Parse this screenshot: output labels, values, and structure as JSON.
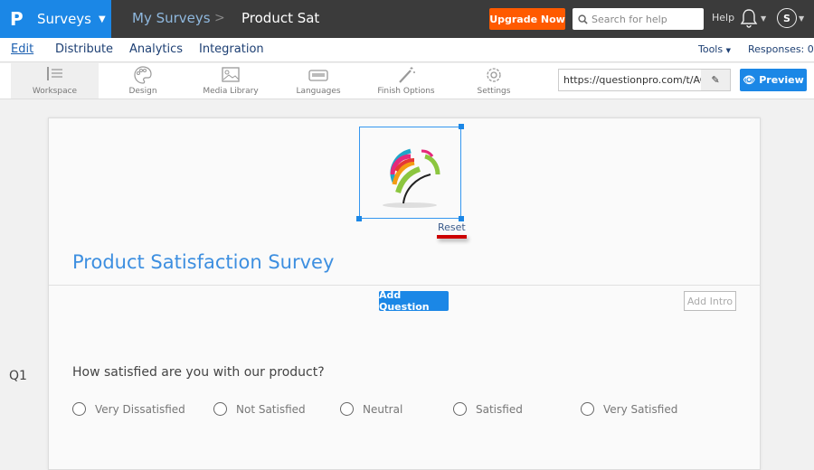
{
  "header": {
    "brand_logo": "P",
    "brand": "Surveys",
    "breadcrumb": [
      "My Surveys",
      "Product Sat"
    ],
    "upgrade": "Upgrade Now",
    "search_placeholder": "Search for help",
    "help": "Help",
    "avatar": "S"
  },
  "nav": {
    "items": [
      "Edit",
      "Distribute",
      "Analytics",
      "Integration"
    ],
    "active": "Edit",
    "tools": "Tools",
    "responses": "Responses: 0"
  },
  "toolbar": {
    "items": [
      {
        "label": "Workspace",
        "icon": "workspace-icon"
      },
      {
        "label": "Design",
        "icon": "palette-icon"
      },
      {
        "label": "Media Library",
        "icon": "image-icon"
      },
      {
        "label": "Languages",
        "icon": "keyboard-icon"
      },
      {
        "label": "Finish Options",
        "icon": "magic-wand-icon"
      },
      {
        "label": "Settings",
        "icon": "gear-icon"
      }
    ],
    "url": "https://questionpro.com/t/AOh",
    "preview": "Preview"
  },
  "survey": {
    "reset": "Reset",
    "title": "Product Satisfaction Survey",
    "add_question": "Add Question",
    "add_intro": "Add Intro",
    "question": {
      "number": "Q1",
      "text": "How satisfied are you with our product?",
      "options": [
        "Very Dissatisfied",
        "Not Satisfied",
        "Neutral",
        "Satisfied",
        "Very Satisfied"
      ]
    }
  },
  "colors": {
    "accent": "#1b87e6",
    "upgrade": "#ff5a00",
    "topbar": "#3b3b3b",
    "title": "#3d8fe0"
  }
}
